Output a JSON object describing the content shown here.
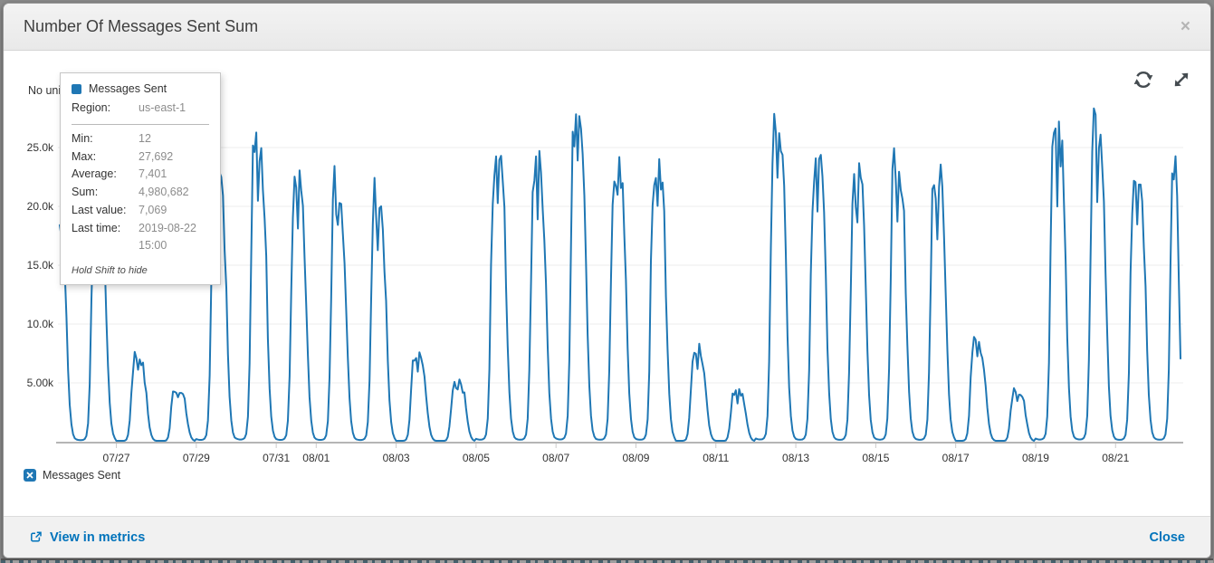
{
  "dialog": {
    "title": "Number Of Messages Sent Sum",
    "close_glyph": "×"
  },
  "chart": {
    "unit_label": "No unit"
  },
  "tooltip": {
    "series_name": "Messages Sent",
    "region_label": "Region:",
    "region_value": "us-east-1",
    "stats": [
      {
        "label": "Min:",
        "value": "12"
      },
      {
        "label": "Max:",
        "value": "27,692"
      },
      {
        "label": "Average:",
        "value": "7,401"
      },
      {
        "label": "Sum:",
        "value": "4,980,682"
      },
      {
        "label": "Last value:",
        "value": "7,069"
      },
      {
        "label": "Last time:",
        "value": "2019-08-22 15:00"
      }
    ],
    "hint": "Hold Shift to hide"
  },
  "legend": {
    "label": "Messages Sent"
  },
  "footer": {
    "view_in_metrics": "View in metrics",
    "close": "Close"
  },
  "icons": {
    "header_close": "close-icon",
    "refresh": "refresh-icon",
    "expand": "expand-icon",
    "external_link": "external-link-icon",
    "legend_toggle": "x-mark-icon"
  },
  "chart_data": {
    "type": "line",
    "title": "Number Of Messages Sent Sum",
    "ylabel": "No unit",
    "legend_position": "bottom-left",
    "grid": "horizontal-only",
    "series": [
      {
        "name": "Messages Sent",
        "region": "us-east-1",
        "color": "#1f77b4"
      }
    ],
    "stats_numeric": {
      "min": 12,
      "max": 27692,
      "average": 7401,
      "sum": 4980682,
      "last_value": 7069,
      "last_time": "2019-08-22 15:00"
    },
    "y_ticks": [
      {
        "value": 5000,
        "label": "5.00k"
      },
      {
        "value": 10000,
        "label": "10.0k"
      },
      {
        "value": 15000,
        "label": "15.0k"
      },
      {
        "value": 20000,
        "label": "20.0k"
      },
      {
        "value": 25000,
        "label": "25.0k"
      }
    ],
    "ylim": [
      0,
      30000
    ],
    "x_tick_labels": [
      "07/27",
      "07/29",
      "07/31",
      "08/01",
      "08/03",
      "08/05",
      "08/07",
      "08/09",
      "08/11",
      "08/13",
      "08/15",
      "08/17",
      "08/19",
      "08/21"
    ],
    "dates": [
      "07/25",
      "07/26",
      "07/27",
      "07/28",
      "07/29",
      "07/30",
      "07/31",
      "08/01",
      "08/02",
      "08/03",
      "08/04",
      "08/05",
      "08/06",
      "08/07",
      "08/08",
      "08/09",
      "08/10",
      "08/11",
      "08/12",
      "08/13",
      "08/14",
      "08/15",
      "08/16",
      "08/17",
      "08/18",
      "08/19",
      "08/20",
      "08/21",
      "08/22"
    ],
    "daily_peaks": [
      18500,
      19500,
      7200,
      4600,
      22500,
      26600,
      22300,
      21800,
      20800,
      7400,
      5100,
      24600,
      24300,
      27692,
      24100,
      23900,
      8100,
      4400,
      27200,
      24200,
      23400,
      24900,
      23600,
      8800,
      4400,
      26800,
      27600,
      23400,
      24500
    ],
    "start_hour": 14,
    "end_hour": 15,
    "grid_color": "#ececec",
    "axis_color": "#b5b5b5",
    "tick_color": "#cccccc"
  }
}
